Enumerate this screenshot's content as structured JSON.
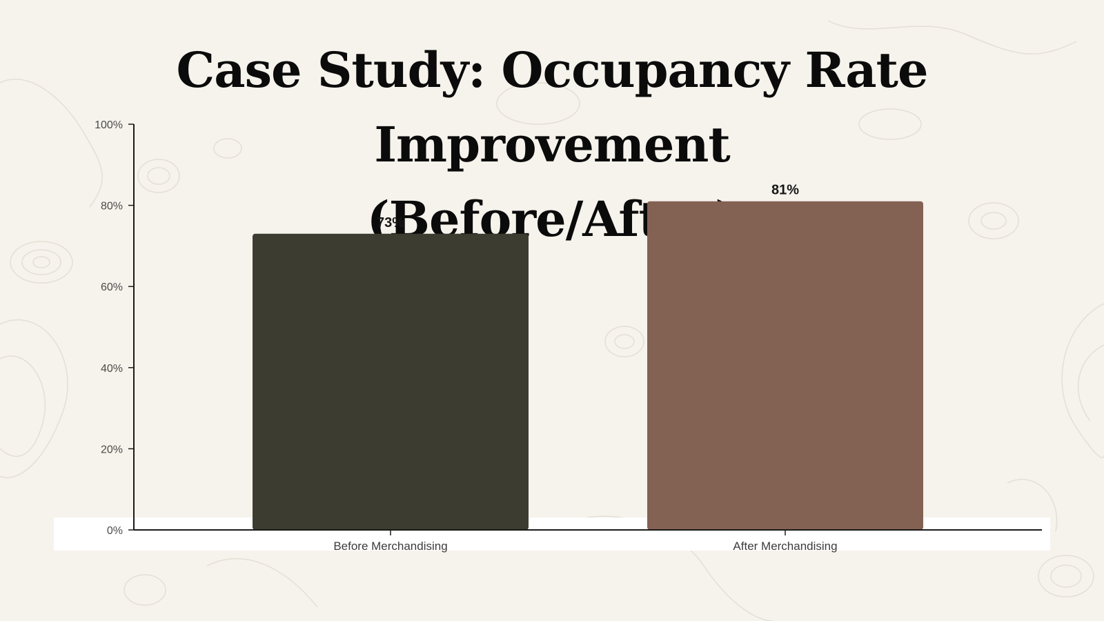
{
  "chart_data": {
    "type": "bar",
    "title_lines": [
      "Case Study: Occupancy Rate Improvement",
      "(Before/After)"
    ],
    "categories": [
      "Before Merchandising",
      "After Merchandising"
    ],
    "values": [
      73,
      81
    ],
    "value_labels": [
      "73%",
      "81%"
    ],
    "bar_colors": [
      "#3d3c30",
      "#836153"
    ],
    "ylim": [
      0,
      100
    ],
    "yticks": [
      0,
      20,
      40,
      60,
      80,
      100
    ],
    "ytick_labels": [
      "0%",
      "20%",
      "40%",
      "60%",
      "80%",
      "100%"
    ],
    "xlabel": "",
    "ylabel": "",
    "grid": false
  },
  "colors": {
    "background": "#f6f3ec",
    "axis": "#1a1a1a",
    "title": "#0b0b0b"
  }
}
